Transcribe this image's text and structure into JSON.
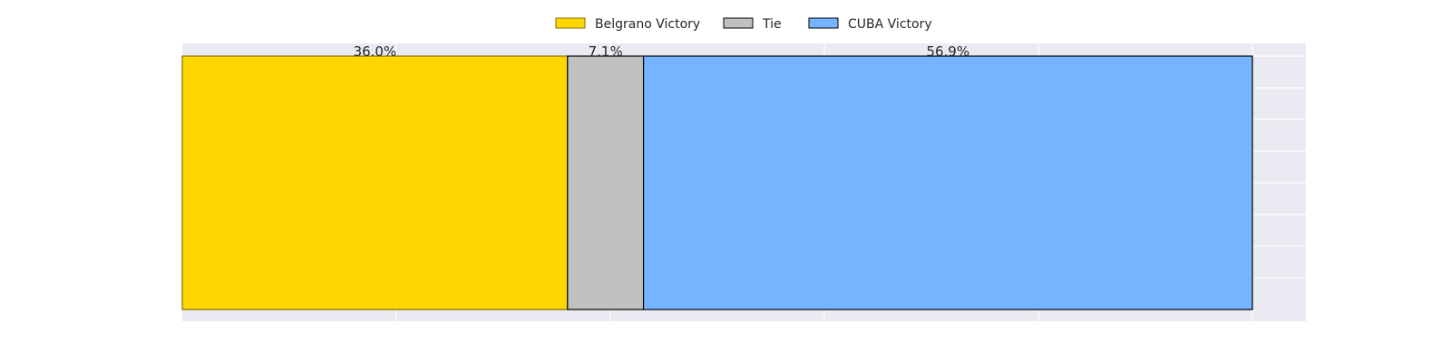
{
  "chart_data": {
    "type": "bar",
    "orientation": "horizontal",
    "stacked": true,
    "title": "",
    "xlabel": "",
    "ylabel": "",
    "xlim": [
      0,
      105
    ],
    "grid": true,
    "legend_position": "top-center",
    "series": [
      {
        "name": "Belgrano Victory",
        "value": 36.0,
        "label": "36.0%",
        "color": "#FFD700"
      },
      {
        "name": "Tie",
        "value": 7.1,
        "label": "7.1%",
        "color": "#C0C0C0"
      },
      {
        "name": "CUBA Victory",
        "value": 56.9,
        "label": "56.9%",
        "color": "#75B4FF"
      }
    ]
  },
  "colors": {
    "plot_background": "#EAEAF2",
    "grid": "#FFFFFF",
    "bar_edge": "#000000",
    "text": "#262626"
  }
}
